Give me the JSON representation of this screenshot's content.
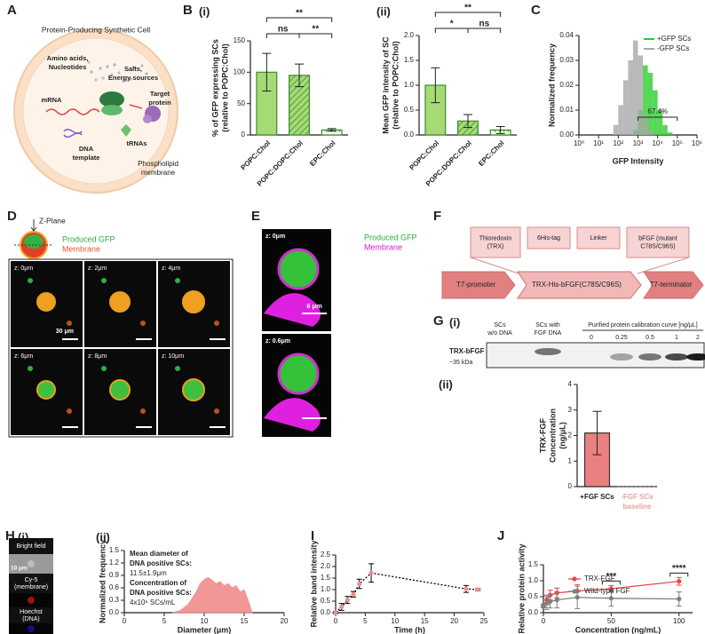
{
  "figure": {
    "panels": [
      "A",
      "B",
      "C",
      "D",
      "E",
      "F",
      "G",
      "H",
      "I",
      "J"
    ],
    "subpanels": [
      "(i)",
      "(ii)"
    ],
    "panel_a": {
      "title": "Protein-Producing Synthetic Cell",
      "amino": [
        "Amino acids,",
        "Nucleotides"
      ],
      "salts": [
        "Salts,",
        "Energy sources"
      ],
      "mrna": "mRNA",
      "target": [
        "Target",
        "protein"
      ],
      "dna": [
        "DNA",
        "template"
      ],
      "trnas": "tRNAs",
      "membrane": [
        "Phospholipid",
        "membrane"
      ]
    },
    "panel_d": {
      "zplane": "Z-Plane",
      "gfp": "Produced GFP",
      "membrane": "Membrane",
      "tiles": [
        "z: 0μm",
        "z: 2μm",
        "z: 4μm",
        "z: 6μm",
        "z: 8μm",
        "z: 10μm"
      ],
      "scale": "30 μm"
    },
    "panel_e": {
      "gfp": "Produced GFP",
      "membrane": "Membrane",
      "tiles": [
        "z: 0μm",
        "z: 0.6μm"
      ],
      "scale": "6 μm"
    },
    "panel_f": {
      "domains": [
        [
          "Thioredoxin",
          "(TRX)"
        ],
        [
          "6His-tag"
        ],
        [
          "Linker"
        ],
        [
          "bFGF (mutant",
          "C78S/C96S)"
        ]
      ],
      "elements": [
        "T7-promoter",
        "TRX-His-bFGF(C78S/C96S)",
        "T7-terminator"
      ]
    },
    "panel_g": {
      "lanes": [
        [
          "SCs",
          "w/o DNA"
        ],
        [
          "SCs with",
          "FGF DNA"
        ]
      ],
      "calibration": "Purified protein calibration curve [ng/μL]",
      "concentrations": [
        0,
        0.25,
        0.5,
        1,
        2
      ],
      "band": "TRX-bFGF",
      "size": "~35 kDa"
    },
    "panel_h": {
      "tiles": [
        [
          "Bright field"
        ],
        [
          "Cy-5",
          "(membrane)"
        ],
        [
          "Hoechst",
          "(DNA)"
        ]
      ],
      "scale": "10 μm"
    }
  },
  "chart_data": [
    {
      "type": "bar",
      "y_label": [
        "% of GFP expressing SCs",
        "(relative to POPC:Chol)"
      ],
      "categories": [
        "POPC:Chol",
        "POPC:DOPC:Chol",
        "EPC:Chol"
      ],
      "values": [
        100,
        95,
        8
      ],
      "errors": [
        30,
        18,
        2
      ],
      "color": "#a6da74",
      "edge_color": "#3d8b2e",
      "patterns": [
        "solid",
        "hatch",
        "dots"
      ],
      "ylim": [
        0,
        150
      ],
      "yticks": [
        0,
        50,
        100,
        150
      ],
      "brackets": [
        {
          "from": 0,
          "to": 2,
          "label": "**"
        },
        {
          "from": 0,
          "to": 1,
          "label": "ns"
        },
        {
          "from": 1,
          "to": 2,
          "label": "**"
        }
      ]
    },
    {
      "type": "bar",
      "y_label": [
        "Mean GFP intensity of SC",
        "(relative to POPC:Chol)"
      ],
      "categories": [
        "POPC:Chol",
        "POPC:DOPC:Chol",
        "EPC:Chol"
      ],
      "values": [
        1.0,
        0.28,
        0.1
      ],
      "errors": [
        0.35,
        0.13,
        0.07
      ],
      "color": "#a6da74",
      "edge_color": "#3d8b2e",
      "patterns": [
        "solid",
        "hatch",
        "dots"
      ],
      "ylim": [
        0,
        2
      ],
      "yticks": [
        {
          "value": 0,
          "label": "0.0"
        },
        0.5,
        {
          "value": 1,
          "label": "1.0"
        },
        1.5,
        {
          "value": 2,
          "label": "2.0"
        }
      ],
      "brackets": [
        {
          "from": 0,
          "to": 2,
          "label": "**"
        },
        {
          "from": 0,
          "to": 1,
          "label": "*"
        },
        {
          "from": 1,
          "to": 2,
          "label": "ns"
        }
      ]
    },
    {
      "type": "histogram",
      "x_label": "GFP Intensity",
      "y_label": [
        "Normalized frequency"
      ],
      "xscale": "log",
      "xlim": [
        1,
        1000000
      ],
      "xticks": [
        {
          "value": 1,
          "label": "10⁰"
        },
        {
          "value": 10,
          "label": "10¹"
        },
        {
          "value": 100,
          "label": "10²"
        },
        {
          "value": 1000,
          "label": "10³"
        },
        {
          "value": 10000,
          "label": "10⁴"
        },
        {
          "value": 100000,
          "label": "10⁵"
        },
        {
          "value": 1000000,
          "label": "10⁶"
        }
      ],
      "ylim": [
        0,
        0.04
      ],
      "yticks": [
        {
          "value": 0,
          "label": "0.00"
        },
        0.01,
        0.02,
        0.03,
        0.04
      ],
      "bins": [
        56,
        100,
        178,
        316,
        562,
        1000,
        1778,
        3162,
        5623,
        10000,
        17783,
        31623,
        56234
      ],
      "series": [
        {
          "name": "+GFP SCs",
          "color": "#2ecc2e",
          "values": [
            0,
            0,
            0,
            0,
            0.002,
            0.01,
            0.028,
            0.025,
            0.018,
            0.01,
            0.004,
            0.001
          ]
        },
        {
          "name": "-GFP SCs",
          "color": "#a8a8a8",
          "values": [
            0.004,
            0.012,
            0.022,
            0.03,
            0.038,
            0.032,
            0.008,
            0.002,
            0,
            0,
            0,
            0
          ]
        }
      ],
      "legend": "upper right",
      "gate": {
        "label": "67.4%",
        "range": [
          1000,
          100000
        ]
      }
    },
    {
      "type": "bar",
      "y_label": [
        "TRX-FGF",
        "Concentration",
        "(ng/μL)"
      ],
      "categories": [
        "+FGF SCs"
      ],
      "values": [
        2.1
      ],
      "errors": [
        0.85
      ],
      "color": "#ea8080",
      "edge_color": "#333333",
      "patterns": [
        "solid"
      ],
      "ylim": [
        0,
        4
      ],
      "yticks": [
        0,
        1,
        2,
        3,
        4
      ],
      "baseline": {
        "value": 0,
        "label": [
          "-FGF SCs",
          "baseline"
        ],
        "color": "#e8a39c"
      }
    },
    {
      "type": "area",
      "x_label": "Diameter (μm)",
      "y_label": [
        "Normalized frequency"
      ],
      "x": [
        6,
        7,
        8,
        9,
        9.5,
        10,
        10.5,
        11,
        11.5,
        12,
        12.5,
        13,
        13.5,
        14,
        14.5,
        15,
        15.5,
        16
      ],
      "values": [
        0,
        0.05,
        0.2,
        0.5,
        0.7,
        0.8,
        0.85,
        0.78,
        0.7,
        0.75,
        0.65,
        0.7,
        0.6,
        0.65,
        0.5,
        0.55,
        0.3,
        0
      ],
      "color": "#f08c8c",
      "xlim": [
        0,
        20
      ],
      "xticks": [
        0,
        5,
        10,
        15,
        20
      ],
      "ylim": [
        0,
        1.5
      ],
      "yticks": [
        {
          "value": 0,
          "label": "0.0"
        },
        0.3,
        0.6,
        0.9,
        1.2,
        1.5
      ],
      "annotations": [
        "Mean diameter of",
        "DNA positive SCs:",
        "11.5±1.9μm",
        "Concentration of",
        "DNA positive SCs:",
        "4x10⁶ SCs/mL"
      ]
    },
    {
      "type": "line",
      "x_label": "Time (h)",
      "y_label": [
        "Relative band intensity"
      ],
      "xlim": [
        0,
        25
      ],
      "xticks": [
        0,
        5,
        10,
        15,
        20,
        25
      ],
      "ylim": [
        0,
        2.5
      ],
      "yticks": [
        {
          "value": 0,
          "label": "0.0"
        },
        0.5,
        {
          "value": 1,
          "label": "1.0"
        },
        1.5,
        {
          "value": 2,
          "label": "2.0"
        },
        2.5
      ],
      "series": [
        {
          "color": "#000000",
          "marker_color": "#f08c8c",
          "line_style": "dotted",
          "x": [
            0,
            1,
            2,
            3,
            4,
            6,
            22,
            24
          ],
          "values": [
            0,
            0.25,
            0.55,
            0.8,
            1.25,
            1.72,
            1.03,
            1.0
          ],
          "errors": [
            0.05,
            0.15,
            0.15,
            0.12,
            0.2,
            0.4,
            0.15,
            0.05
          ]
        }
      ]
    },
    {
      "type": "line",
      "x_label": "Concentration (ng/mL)",
      "y_label": [
        "Relative protein activity"
      ],
      "xlim": [
        0,
        110
      ],
      "xticks": [
        0,
        50,
        100
      ],
      "ylim": [
        0,
        1.5
      ],
      "yticks": [
        {
          "value": 0,
          "label": "0.0"
        },
        0.5,
        {
          "value": 1,
          "label": "1.0"
        },
        1.5
      ],
      "series": [
        {
          "name": "TRX-FGF",
          "color": "#e8474c",
          "marker_color": "#e8474c",
          "line_style": "solid",
          "x": [
            0,
            2.5,
            5,
            10,
            25,
            50,
            100
          ],
          "values": [
            0.22,
            0.4,
            0.55,
            0.62,
            0.68,
            0.75,
            0.98
          ],
          "errors": [
            0.05,
            0.15,
            0.15,
            0.15,
            0.2,
            0.1,
            0.12
          ]
        },
        {
          "name": "Wild-type FGF",
          "color": "#7f7f7f",
          "marker_color": "#7f7f7f",
          "line_style": "solid",
          "x": [
            0,
            2.5,
            5,
            10,
            25,
            50,
            100
          ],
          "values": [
            0.2,
            0.3,
            0.35,
            0.4,
            0.48,
            0.45,
            0.43
          ],
          "errors": [
            0.05,
            0.2,
            0.2,
            0.25,
            0.35,
            0.25,
            0.22
          ]
        }
      ],
      "legend": "upper left",
      "significance": [
        {
          "at": 5,
          "label": "***"
        },
        {
          "at": 6,
          "label": "****"
        }
      ]
    }
  ]
}
